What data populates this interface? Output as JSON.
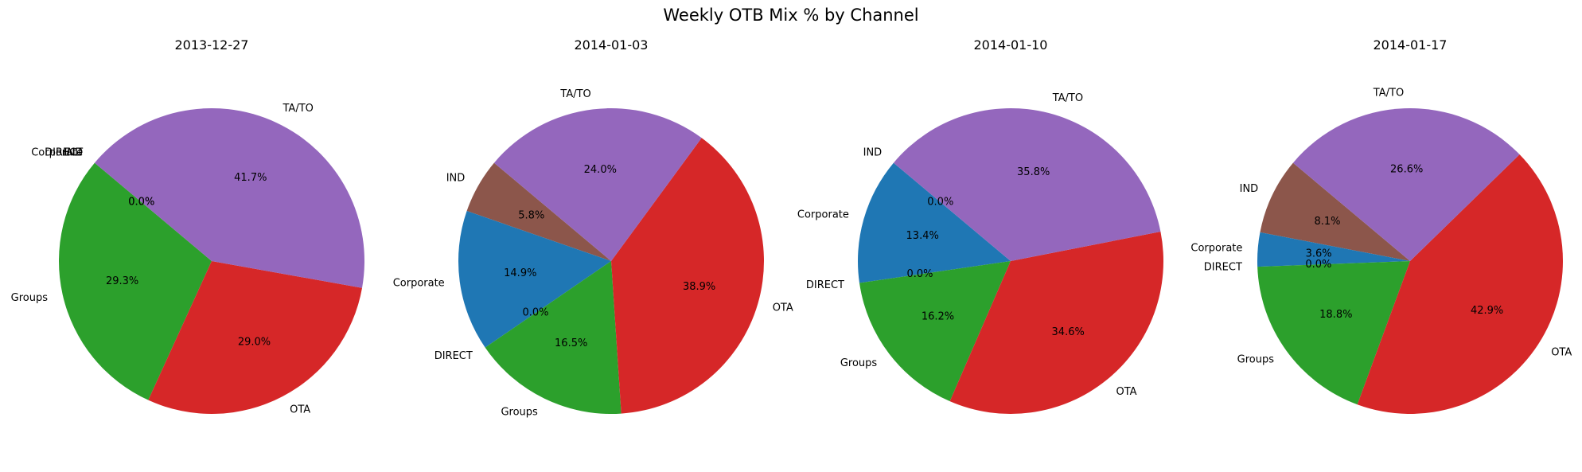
{
  "figure_title": "Weekly OTB Mix % by Channel",
  "colors": {
    "Corporate": "#1f77b4",
    "DIRECT": "#ff7f0e",
    "Groups": "#2ca02c",
    "OTA": "#d62728",
    "TA/TO": "#9467bd",
    "IND": "#8c564b"
  },
  "chart_data": [
    {
      "type": "pie",
      "title": "2013-12-27",
      "slices": [
        {
          "label": "IND",
          "value": 0.0,
          "pct_label": ""
        },
        {
          "label": "DIRECT",
          "value": 0.0,
          "pct_label": "0.0%"
        },
        {
          "label": "Corporate",
          "value": 0.0,
          "pct_label": "0.0%"
        },
        {
          "label": "Groups",
          "value": 29.3,
          "pct_label": "29.3%"
        },
        {
          "label": "OTA",
          "value": 29.0,
          "pct_label": "29.0%"
        },
        {
          "label": "TA/TO",
          "value": 41.7,
          "pct_label": "41.7%"
        }
      ]
    },
    {
      "type": "pie",
      "title": "2014-01-03",
      "slices": [
        {
          "label": "IND",
          "value": 5.8,
          "pct_label": "5.8%"
        },
        {
          "label": "Corporate",
          "value": 14.9,
          "pct_label": "14.9%"
        },
        {
          "label": "DIRECT",
          "value": 0.0,
          "pct_label": "0.0%"
        },
        {
          "label": "Groups",
          "value": 16.5,
          "pct_label": "16.5%"
        },
        {
          "label": "OTA",
          "value": 38.9,
          "pct_label": "38.9%"
        },
        {
          "label": "TA/TO",
          "value": 24.0,
          "pct_label": "24.0%"
        }
      ]
    },
    {
      "type": "pie",
      "title": "2014-01-10",
      "slices": [
        {
          "label": "IND",
          "value": 0.0,
          "pct_label": "0.0%"
        },
        {
          "label": "Corporate",
          "value": 13.4,
          "pct_label": "13.4%"
        },
        {
          "label": "DIRECT",
          "value": 0.0,
          "pct_label": "0.0%"
        },
        {
          "label": "Groups",
          "value": 16.2,
          "pct_label": "16.2%"
        },
        {
          "label": "OTA",
          "value": 34.6,
          "pct_label": "34.6%"
        },
        {
          "label": "TA/TO",
          "value": 35.8,
          "pct_label": "35.8%"
        }
      ]
    },
    {
      "type": "pie",
      "title": "2014-01-17",
      "slices": [
        {
          "label": "IND",
          "value": 8.1,
          "pct_label": "8.1%"
        },
        {
          "label": "Corporate",
          "value": 3.6,
          "pct_label": "3.6%"
        },
        {
          "label": "DIRECT",
          "value": 0.0,
          "pct_label": "0.0%"
        },
        {
          "label": "Groups",
          "value": 18.8,
          "pct_label": "18.8%"
        },
        {
          "label": "OTA",
          "value": 42.9,
          "pct_label": "42.9%"
        },
        {
          "label": "TA/TO",
          "value": 26.6,
          "pct_label": "26.6%"
        }
      ]
    }
  ]
}
